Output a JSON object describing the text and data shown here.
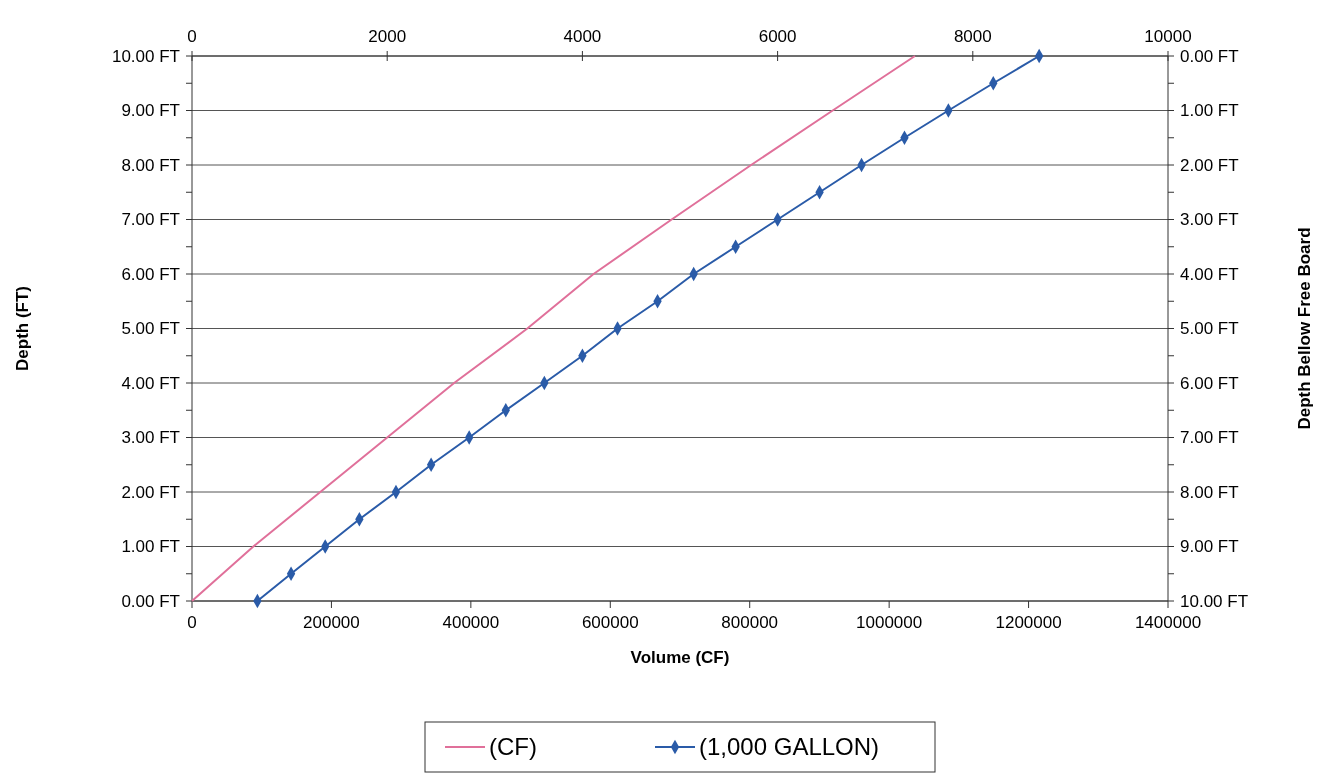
{
  "chart_data": {
    "type": "line",
    "xlabel": "Volume (CF)",
    "ylabel": "Depth (FT)",
    "y2label": "Depth Bellow Free Board",
    "xlim": [
      0,
      1400000
    ],
    "xticks": [
      0,
      200000,
      400000,
      600000,
      800000,
      1000000,
      1200000,
      1400000
    ],
    "x2lim": [
      0,
      10000
    ],
    "x2ticks": [
      0,
      2000,
      4000,
      6000,
      8000,
      10000
    ],
    "ylim": [
      0,
      10
    ],
    "yticks": [
      {
        "value": 0,
        "label": "0.00 FT"
      },
      {
        "value": 0.5,
        "label": null
      },
      {
        "value": 1,
        "label": "1.00 FT"
      },
      {
        "value": 1.5,
        "label": null
      },
      {
        "value": 2,
        "label": "2.00 FT"
      },
      {
        "value": 2.5,
        "label": null
      },
      {
        "value": 3,
        "label": "3.00 FT"
      },
      {
        "value": 3.5,
        "label": null
      },
      {
        "value": 4,
        "label": "4.00 FT"
      },
      {
        "value": 4.5,
        "label": null
      },
      {
        "value": 5,
        "label": "5.00 FT"
      },
      {
        "value": 5.5,
        "label": null
      },
      {
        "value": 6,
        "label": "6.00 FT"
      },
      {
        "value": 6.5,
        "label": null
      },
      {
        "value": 7,
        "label": "7.00 FT"
      },
      {
        "value": 7.5,
        "label": null
      },
      {
        "value": 8,
        "label": "8.00 FT"
      },
      {
        "value": 8.5,
        "label": null
      },
      {
        "value": 9,
        "label": "9.00 FT"
      },
      {
        "value": 9.5,
        "label": null
      },
      {
        "value": 10,
        "label": "10.00 FT"
      }
    ],
    "y2lim": [
      10,
      0
    ],
    "y2ticks": [
      {
        "value": 0,
        "label": "0.00 FT"
      },
      {
        "value": 0.5,
        "label": null
      },
      {
        "value": 1,
        "label": "1.00 FT"
      },
      {
        "value": 1.5,
        "label": null
      },
      {
        "value": 2,
        "label": "2.00 FT"
      },
      {
        "value": 2.5,
        "label": null
      },
      {
        "value": 3,
        "label": "3.00 FT"
      },
      {
        "value": 3.5,
        "label": null
      },
      {
        "value": 4,
        "label": "4.00 FT"
      },
      {
        "value": 4.5,
        "label": null
      },
      {
        "value": 5,
        "label": "5.00 FT"
      },
      {
        "value": 5.5,
        "label": null
      },
      {
        "value": 6,
        "label": "6.00 FT"
      },
      {
        "value": 6.5,
        "label": null
      },
      {
        "value": 7,
        "label": "7.00 FT"
      },
      {
        "value": 7.5,
        "label": null
      },
      {
        "value": 8,
        "label": "8.00 FT"
      },
      {
        "value": 8.5,
        "label": null
      },
      {
        "value": 9,
        "label": "9.00 FT"
      },
      {
        "value": 9.5,
        "label": null
      },
      {
        "value": 10,
        "label": "10.00 FT"
      }
    ],
    "grid": "y",
    "legend": "bottom",
    "series": [
      {
        "name": "(CF)",
        "color": "#e0709a",
        "marker": "none",
        "x": [
          0,
          88000,
          184000,
          280000,
          376000,
          481000,
          576000,
          688000,
          802000,
          919000,
          1037000
        ],
        "values": [
          0,
          1,
          2,
          3,
          4,
          5,
          6,
          7,
          8,
          9,
          10
        ]
      },
      {
        "name": "(1,000 GALLON)",
        "color": "#2a5ba8",
        "marker": "diamond",
        "axis": "x2",
        "x": [
          670,
          1015,
          1365,
          1715,
          2090,
          2450,
          2840,
          3215,
          3610,
          4000,
          4360,
          4770,
          5140,
          5570,
          6000,
          6430,
          6860,
          7300,
          7750,
          8210,
          8680
        ],
        "values": [
          0,
          0.5,
          1,
          1.5,
          2,
          2.5,
          3,
          3.5,
          4,
          4.5,
          5,
          5.5,
          6,
          6.5,
          7,
          7.5,
          8,
          8.5,
          9,
          9.5,
          10
        ]
      }
    ]
  }
}
